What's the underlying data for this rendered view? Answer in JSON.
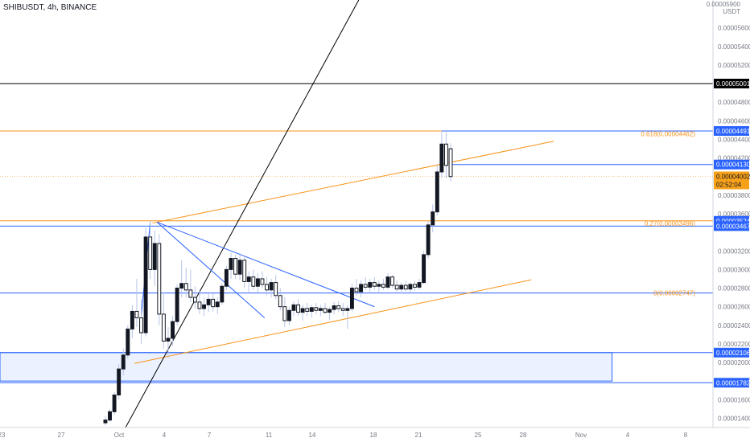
{
  "header": {
    "title": "SHIBUSDT, 4h, BINANCE",
    "price_unit_top": "0.00005900",
    "price_unit": "USDT"
  },
  "colors": {
    "up": "#131722",
    "down": "#131722",
    "orange": "#f7931a",
    "blue": "#2962ff",
    "black": "#000000",
    "fib_label": "#f7931a",
    "current": "#f7a11a"
  },
  "chart_data": {
    "type": "candlestick",
    "symbol": "SHIBUSDT",
    "interval": "4h",
    "exchange": "BINANCE",
    "ylim": [
      1.3e-05,
      5.9e-05
    ],
    "xlim": [
      -0.1,
      31.7
    ],
    "y_ticks": [
      "0.00005600",
      "0.00005400",
      "0.00005200",
      "0.00004800",
      "0.00004600",
      "0.00004400",
      "0.00004200",
      "0.00003800",
      "0.00003600",
      "0.00003200",
      "0.00003000",
      "0.00002800",
      "0.00002600",
      "0.00002400",
      "0.00002200",
      "0.00002000",
      "0.00001800",
      "0.00001600",
      "0.00001400"
    ],
    "x_ticks": [
      "23",
      "27",
      "Oct",
      "4",
      "7",
      "11",
      "14",
      "18",
      "21",
      "25",
      "28",
      "Nov",
      "4",
      "8"
    ],
    "price_labels": [
      {
        "label": "0.00005001",
        "price": 5.001e-05,
        "style": "black"
      },
      {
        "label": "0.00004491",
        "price": 4.491e-05,
        "style": "blue"
      },
      {
        "label": "0.00004130",
        "price": 4.13e-05,
        "style": "blue"
      },
      {
        "label": "0.00004002",
        "price": 4.002e-05,
        "style": "current",
        "countdown": "02:52:04"
      },
      {
        "label": "0.00003524",
        "price": 3.524e-05,
        "style": "blue"
      },
      {
        "label": "0.00003467",
        "price": 3.467e-05,
        "style": "blue"
      },
      {
        "label": "0.00002106",
        "price": 2.106e-05,
        "style": "blue"
      },
      {
        "label": "0.00001782",
        "price": 1.782e-05,
        "style": "blue"
      }
    ],
    "fib_levels": [
      {
        "text": "0.618(0.00004462)",
        "price": 4.462e-05
      },
      {
        "text": "0.27(0.00003496)",
        "price": 3.496e-05
      },
      {
        "text": "0(0.00002747)",
        "price": 2.747e-05
      }
    ],
    "candles": [
      {
        "d": 4.6,
        "o": 1.35e-05,
        "h": 1.42e-05,
        "l": 1.32e-05,
        "c": 1.38e-05
      },
      {
        "d": 4.8,
        "o": 1.38e-05,
        "h": 1.5e-05,
        "l": 1.36e-05,
        "c": 1.47e-05
      },
      {
        "d": 5.0,
        "o": 1.47e-05,
        "h": 1.68e-05,
        "l": 1.44e-05,
        "c": 1.65e-05
      },
      {
        "d": 5.2,
        "o": 1.65e-05,
        "h": 1.98e-05,
        "l": 1.6e-05,
        "c": 1.93e-05
      },
      {
        "d": 5.4,
        "o": 1.93e-05,
        "h": 2.15e-05,
        "l": 1.86e-05,
        "c": 2.08e-05
      },
      {
        "d": 5.6,
        "o": 2.08e-05,
        "h": 2.4e-05,
        "l": 2.04e-05,
        "c": 2.36e-05
      },
      {
        "d": 5.8,
        "o": 2.36e-05,
        "h": 2.62e-05,
        "l": 2.26e-05,
        "c": 2.55e-05
      },
      {
        "d": 6.0,
        "o": 2.55e-05,
        "h": 2.9e-05,
        "l": 2.38e-05,
        "c": 2.48e-05
      },
      {
        "d": 6.2,
        "o": 2.48e-05,
        "h": 2.68e-05,
        "l": 2.2e-05,
        "c": 2.32e-05
      },
      {
        "d": 6.4,
        "o": 2.32e-05,
        "h": 3.45e-05,
        "l": 2.28e-05,
        "c": 3.35e-05
      },
      {
        "d": 6.6,
        "o": 3.35e-05,
        "h": 3.52e-05,
        "l": 2.9e-05,
        "c": 3e-05
      },
      {
        "d": 6.8,
        "o": 3e-05,
        "h": 3.42e-05,
        "l": 2.82e-05,
        "c": 3.28e-05
      },
      {
        "d": 7.0,
        "o": 3.28e-05,
        "h": 3.38e-05,
        "l": 2.4e-05,
        "c": 2.52e-05
      },
      {
        "d": 7.2,
        "o": 2.52e-05,
        "h": 2.75e-05,
        "l": 2.15e-05,
        "c": 2.23e-05
      },
      {
        "d": 7.4,
        "o": 2.23e-05,
        "h": 2.38e-05,
        "l": 2.05e-05,
        "c": 2.26e-05
      },
      {
        "d": 7.6,
        "o": 2.26e-05,
        "h": 2.5e-05,
        "l": 2.18e-05,
        "c": 2.44e-05
      },
      {
        "d": 7.8,
        "o": 2.44e-05,
        "h": 2.84e-05,
        "l": 2.4e-05,
        "c": 2.8e-05
      },
      {
        "d": 8.0,
        "o": 2.8e-05,
        "h": 3.1e-05,
        "l": 2.7e-05,
        "c": 2.85e-05
      },
      {
        "d": 8.2,
        "o": 2.85e-05,
        "h": 3.02e-05,
        "l": 2.7e-05,
        "c": 2.78e-05
      },
      {
        "d": 8.4,
        "o": 2.78e-05,
        "h": 3e-05,
        "l": 2.65e-05,
        "c": 2.7e-05
      },
      {
        "d": 8.6,
        "o": 2.7e-05,
        "h": 2.82e-05,
        "l": 2.58e-05,
        "c": 2.65e-05
      },
      {
        "d": 8.8,
        "o": 2.65e-05,
        "h": 2.78e-05,
        "l": 2.52e-05,
        "c": 2.58e-05
      },
      {
        "d": 9.0,
        "o": 2.58e-05,
        "h": 2.7e-05,
        "l": 2.5e-05,
        "c": 2.62e-05
      },
      {
        "d": 9.2,
        "o": 2.62e-05,
        "h": 2.76e-05,
        "l": 2.54e-05,
        "c": 2.68e-05
      },
      {
        "d": 9.4,
        "o": 2.68e-05,
        "h": 2.74e-05,
        "l": 2.55e-05,
        "c": 2.6e-05
      },
      {
        "d": 9.6,
        "o": 2.6e-05,
        "h": 2.7e-05,
        "l": 2.52e-05,
        "c": 2.65e-05
      },
      {
        "d": 9.8,
        "o": 2.65e-05,
        "h": 2.85e-05,
        "l": 2.62e-05,
        "c": 2.82e-05
      },
      {
        "d": 10.0,
        "o": 2.82e-05,
        "h": 3.04e-05,
        "l": 2.78e-05,
        "c": 3e-05
      },
      {
        "d": 10.2,
        "o": 3e-05,
        "h": 3.18e-05,
        "l": 2.9e-05,
        "c": 3.12e-05
      },
      {
        "d": 10.4,
        "o": 3.12e-05,
        "h": 3.16e-05,
        "l": 2.9e-05,
        "c": 2.95e-05
      },
      {
        "d": 10.6,
        "o": 2.95e-05,
        "h": 3.18e-05,
        "l": 2.88e-05,
        "c": 3.1e-05
      },
      {
        "d": 10.8,
        "o": 3.1e-05,
        "h": 3.14e-05,
        "l": 2.8e-05,
        "c": 2.87e-05
      },
      {
        "d": 11.0,
        "o": 2.87e-05,
        "h": 2.98e-05,
        "l": 2.76e-05,
        "c": 2.92e-05
      },
      {
        "d": 11.2,
        "o": 2.92e-05,
        "h": 3e-05,
        "l": 2.78e-05,
        "c": 2.82e-05
      },
      {
        "d": 11.4,
        "o": 2.82e-05,
        "h": 2.96e-05,
        "l": 2.75e-05,
        "c": 2.9e-05
      },
      {
        "d": 11.6,
        "o": 2.9e-05,
        "h": 2.98e-05,
        "l": 2.8e-05,
        "c": 2.84e-05
      },
      {
        "d": 11.8,
        "o": 2.84e-05,
        "h": 2.92e-05,
        "l": 2.72e-05,
        "c": 2.78e-05
      },
      {
        "d": 12.0,
        "o": 2.78e-05,
        "h": 2.9e-05,
        "l": 2.7e-05,
        "c": 2.86e-05
      },
      {
        "d": 12.2,
        "o": 2.86e-05,
        "h": 2.94e-05,
        "l": 2.68e-05,
        "c": 2.72e-05
      },
      {
        "d": 12.4,
        "o": 2.72e-05,
        "h": 2.8e-05,
        "l": 2.56e-05,
        "c": 2.6e-05
      },
      {
        "d": 12.6,
        "o": 2.6e-05,
        "h": 2.7e-05,
        "l": 2.38e-05,
        "c": 2.45e-05
      },
      {
        "d": 12.8,
        "o": 2.45e-05,
        "h": 2.6e-05,
        "l": 2.4e-05,
        "c": 2.56e-05
      },
      {
        "d": 13.0,
        "o": 2.56e-05,
        "h": 2.66e-05,
        "l": 2.5e-05,
        "c": 2.62e-05
      },
      {
        "d": 13.2,
        "o": 2.62e-05,
        "h": 2.68e-05,
        "l": 2.5e-05,
        "c": 2.54e-05
      },
      {
        "d": 13.4,
        "o": 2.54e-05,
        "h": 2.62e-05,
        "l": 2.45e-05,
        "c": 2.58e-05
      },
      {
        "d": 13.6,
        "o": 2.58e-05,
        "h": 2.64e-05,
        "l": 2.5e-05,
        "c": 2.55e-05
      },
      {
        "d": 13.8,
        "o": 2.55e-05,
        "h": 2.62e-05,
        "l": 2.48e-05,
        "c": 2.59e-05
      },
      {
        "d": 14.0,
        "o": 2.59e-05,
        "h": 2.64e-05,
        "l": 2.52e-05,
        "c": 2.56e-05
      },
      {
        "d": 14.2,
        "o": 2.56e-05,
        "h": 2.62e-05,
        "l": 2.5e-05,
        "c": 2.58e-05
      },
      {
        "d": 14.4,
        "o": 2.58e-05,
        "h": 2.64e-05,
        "l": 2.52e-05,
        "c": 2.54e-05
      },
      {
        "d": 14.6,
        "o": 2.54e-05,
        "h": 2.6e-05,
        "l": 2.46e-05,
        "c": 2.57e-05
      },
      {
        "d": 14.8,
        "o": 2.57e-05,
        "h": 2.65e-05,
        "l": 2.52e-05,
        "c": 2.61e-05
      },
      {
        "d": 15.0,
        "o": 2.61e-05,
        "h": 2.66e-05,
        "l": 2.54e-05,
        "c": 2.58e-05
      },
      {
        "d": 15.2,
        "o": 2.58e-05,
        "h": 2.64e-05,
        "l": 2.5e-05,
        "c": 2.56e-05
      },
      {
        "d": 15.4,
        "o": 2.56e-05,
        "h": 2.62e-05,
        "l": 2.36e-05,
        "c": 2.58e-05
      },
      {
        "d": 15.6,
        "o": 2.58e-05,
        "h": 2.85e-05,
        "l": 2.55e-05,
        "c": 2.8e-05
      },
      {
        "d": 15.8,
        "o": 2.8e-05,
        "h": 2.9e-05,
        "l": 2.72e-05,
        "c": 2.76e-05
      },
      {
        "d": 16.0,
        "o": 2.76e-05,
        "h": 2.88e-05,
        "l": 2.7e-05,
        "c": 2.84e-05
      },
      {
        "d": 16.2,
        "o": 2.84e-05,
        "h": 2.92e-05,
        "l": 2.78e-05,
        "c": 2.81e-05
      },
      {
        "d": 16.4,
        "o": 2.81e-05,
        "h": 2.9e-05,
        "l": 2.76e-05,
        "c": 2.86e-05
      },
      {
        "d": 16.6,
        "o": 2.86e-05,
        "h": 2.92e-05,
        "l": 2.78e-05,
        "c": 2.82e-05
      },
      {
        "d": 16.8,
        "o": 2.82e-05,
        "h": 2.88e-05,
        "l": 2.76e-05,
        "c": 2.84e-05
      },
      {
        "d": 17.0,
        "o": 2.84e-05,
        "h": 2.9e-05,
        "l": 2.78e-05,
        "c": 2.81e-05
      },
      {
        "d": 17.2,
        "o": 2.81e-05,
        "h": 2.96e-05,
        "l": 2.79e-05,
        "c": 2.92e-05
      },
      {
        "d": 17.4,
        "o": 2.92e-05,
        "h": 2.94e-05,
        "l": 2.8e-05,
        "c": 2.83e-05
      },
      {
        "d": 17.6,
        "o": 2.83e-05,
        "h": 2.88e-05,
        "l": 2.76e-05,
        "c": 2.79e-05
      },
      {
        "d": 17.8,
        "o": 2.79e-05,
        "h": 2.86e-05,
        "l": 2.74e-05,
        "c": 2.83e-05
      },
      {
        "d": 18.0,
        "o": 2.83e-05,
        "h": 2.88e-05,
        "l": 2.76e-05,
        "c": 2.79e-05
      },
      {
        "d": 18.2,
        "o": 2.79e-05,
        "h": 2.86e-05,
        "l": 2.75e-05,
        "c": 2.84e-05
      },
      {
        "d": 18.4,
        "o": 2.84e-05,
        "h": 2.88e-05,
        "l": 2.77e-05,
        "c": 2.81e-05
      },
      {
        "d": 18.6,
        "o": 2.81e-05,
        "h": 2.9e-05,
        "l": 2.78e-05,
        "c": 2.86e-05
      },
      {
        "d": 18.8,
        "o": 2.86e-05,
        "h": 3.2e-05,
        "l": 2.84e-05,
        "c": 3.16e-05
      },
      {
        "d": 19.0,
        "o": 3.16e-05,
        "h": 3.52e-05,
        "l": 3.12e-05,
        "c": 3.48e-05
      },
      {
        "d": 19.2,
        "o": 3.48e-05,
        "h": 3.7e-05,
        "l": 3.4e-05,
        "c": 3.62e-05
      },
      {
        "d": 19.4,
        "o": 3.62e-05,
        "h": 4.12e-05,
        "l": 3.58e-05,
        "c": 4.05e-05
      },
      {
        "d": 19.6,
        "o": 4.05e-05,
        "h": 4.48e-05,
        "l": 3.98e-05,
        "c": 4.35e-05
      },
      {
        "d": 19.8,
        "o": 4.35e-05,
        "h": 4.49e-05,
        "l": 3.98e-05,
        "c": 4.12e-05
      },
      {
        "d": 20.0,
        "o": 4.3e-05,
        "h": 4.36e-05,
        "l": 3.95e-05,
        "c": 4e-05
      }
    ],
    "drawings": [
      {
        "type": "hline",
        "price": 5.001e-05,
        "color": "black"
      },
      {
        "type": "hline",
        "price": 4.491e-05,
        "color": "orange",
        "from_day": -1,
        "to_day": 20
      },
      {
        "type": "hline",
        "price": 3.524e-05,
        "color": "orange",
        "from_day": -1,
        "to_day": 31.7
      },
      {
        "type": "hline",
        "price": 3.467e-05,
        "color": "blue",
        "from_day": -1,
        "to_day": 31.7
      },
      {
        "type": "hline",
        "price": 2.747e-05,
        "color": "blue",
        "from_day": -1,
        "to_day": 31.7
      },
      {
        "type": "hline",
        "price": 4.002e-05,
        "color": "current_dotted",
        "from_day": -1,
        "to_day": 31.7
      },
      {
        "type": "ray",
        "from": [
          19.6,
          4.491e-05
        ],
        "to": [
          31.7,
          4.491e-05
        ],
        "color": "blue"
      },
      {
        "type": "ray",
        "from": [
          20.0,
          4.13e-05
        ],
        "to": [
          31.7,
          4.13e-05
        ],
        "color": "blue"
      },
      {
        "type": "ray",
        "from": [
          -1,
          2.106e-05
        ],
        "to": [
          31.7,
          2.106e-05
        ],
        "color": "blue"
      },
      {
        "type": "ray",
        "from": [
          -1,
          1.782e-05
        ],
        "to": [
          31.7,
          1.782e-05
        ],
        "color": "blue"
      },
      {
        "type": "box",
        "from": [
          -1,
          2.106e-05
        ],
        "to": [
          27.2,
          1.8e-05
        ],
        "color": "blue"
      },
      {
        "type": "trend",
        "from": [
          6.7,
          3.5e-05
        ],
        "to": [
          24.6,
          4.38e-05
        ],
        "color": "orange"
      },
      {
        "type": "trend",
        "from": [
          5.9,
          1.99e-05
        ],
        "to": [
          23.6,
          2.89e-05
        ],
        "color": "orange"
      },
      {
        "type": "trend",
        "from": [
          5.5,
          1.3e-05
        ],
        "to": [
          15.9,
          5.9e-05
        ],
        "color": "black"
      },
      {
        "type": "trend",
        "from": [
          6.9,
          3.51e-05
        ],
        "to": [
          11.7,
          2.48e-05
        ],
        "color": "blue"
      },
      {
        "type": "trend",
        "from": [
          6.9,
          3.51e-05
        ],
        "to": [
          16.6,
          2.6e-05
        ],
        "color": "blue"
      },
      {
        "type": "trend",
        "from": [
          6.6,
          3.51e-05
        ],
        "to": [
          6.2,
          2.5e-05
        ],
        "color": "blue"
      }
    ]
  }
}
